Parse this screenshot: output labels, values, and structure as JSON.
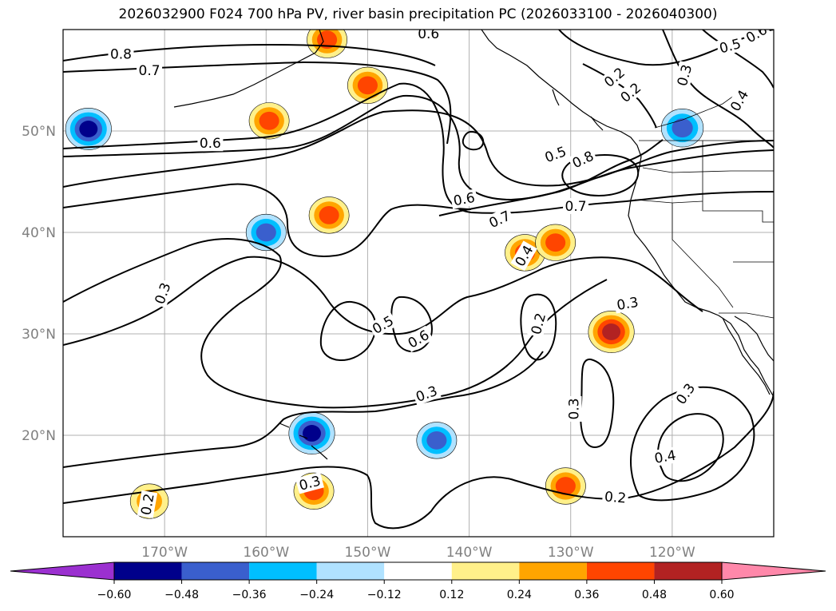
{
  "title": "2026032900 F024 700 hPa PV, river basin precipitation PC (2026033100 - 2026040300)",
  "map": {
    "lon_range": [
      -180,
      -110
    ],
    "lat_range": [
      10,
      60
    ],
    "lat_ticks": [
      {
        "lat": 50,
        "label": "50°N"
      },
      {
        "lat": 40,
        "label": "40°N"
      },
      {
        "lat": 30,
        "label": "30°N"
      },
      {
        "lat": 20,
        "label": "20°N"
      }
    ],
    "lon_ticks": [
      {
        "lon": -170,
        "label": "170°W"
      },
      {
        "lon": -160,
        "label": "160°W"
      },
      {
        "lon": -150,
        "label": "150°W"
      },
      {
        "lon": -140,
        "label": "140°W"
      },
      {
        "lon": -130,
        "label": "130°W"
      },
      {
        "lon": -120,
        "label": "120°W"
      }
    ],
    "pv_contour_labels": [
      {
        "text": "0.8",
        "lon": -174.3,
        "lat": 57.6,
        "rot": 0
      },
      {
        "text": "0.6",
        "lon": -144.0,
        "lat": 59.6,
        "rot": 0
      },
      {
        "text": "0.6",
        "lon": -165.5,
        "lat": 48.8,
        "rot": 0
      },
      {
        "text": "0.6",
        "lon": -140.5,
        "lat": 43.3,
        "rot": -10
      },
      {
        "text": "0.7",
        "lon": -137.0,
        "lat": 41.3,
        "rot": -25
      },
      {
        "text": "0.7",
        "lon": -129.5,
        "lat": 42.6,
        "rot": 0
      },
      {
        "text": "0.5",
        "lon": -131.5,
        "lat": 47.7,
        "rot": -20
      },
      {
        "text": "0.8",
        "lon": -128.8,
        "lat": 47.2,
        "rot": -25
      },
      {
        "text": "0.5",
        "lon": -148.5,
        "lat": 30.9,
        "rot": -30
      },
      {
        "text": "0.6",
        "lon": -145.0,
        "lat": 29.5,
        "rot": -30
      },
      {
        "text": "0.3",
        "lon": -170.2,
        "lat": 34.0,
        "rot": -70
      },
      {
        "text": "0.3",
        "lon": -144.2,
        "lat": 24.1,
        "rot": -20
      },
      {
        "text": "0.4",
        "lon": -134.6,
        "lat": 37.7,
        "rot": -60
      },
      {
        "text": "0.2",
        "lon": -133.2,
        "lat": 31.0,
        "rot": -75
      },
      {
        "text": "0.3",
        "lon": -124.4,
        "lat": 33.0,
        "rot": -10
      },
      {
        "text": "0.3",
        "lon": -129.7,
        "lat": 22.6,
        "rot": -90
      },
      {
        "text": "0.3",
        "lon": -118.7,
        "lat": 24.1,
        "rot": -55
      },
      {
        "text": "0.4",
        "lon": -120.7,
        "lat": 17.9,
        "rot": -10
      },
      {
        "text": "0.3",
        "lon": -155.7,
        "lat": 15.3,
        "rot": -15
      },
      {
        "text": "0.2",
        "lon": -125.6,
        "lat": 13.9,
        "rot": 5
      },
      {
        "text": "0.2",
        "lon": -171.7,
        "lat": 13.2,
        "rot": -80
      },
      {
        "text": "0.2",
        "lon": -125.7,
        "lat": 55.3,
        "rot": -40
      },
      {
        "text": "0.2",
        "lon": -124.1,
        "lat": 53.8,
        "rot": -40
      },
      {
        "text": "0.3",
        "lon": -118.8,
        "lat": 55.5,
        "rot": -75
      },
      {
        "text": "0.5",
        "lon": -114.3,
        "lat": 58.4,
        "rot": -15
      },
      {
        "text": "0.4",
        "lon": -113.4,
        "lat": 53.0,
        "rot": -60
      },
      {
        "text": "0.6",
        "lon": -111.7,
        "lat": 59.6,
        "rot": -30
      },
      {
        "text": "0.7",
        "lon": -171.5,
        "lat": 56.0,
        "rot": 0
      }
    ],
    "precip_blobs": [
      {
        "lon": -177.5,
        "lat": 50.2,
        "value": -0.55
      },
      {
        "lon": -160.0,
        "lat": 40.0,
        "value": -0.4
      },
      {
        "lon": -155.5,
        "lat": 20.2,
        "value": -0.55
      },
      {
        "lon": -143.2,
        "lat": 19.5,
        "value": -0.4
      },
      {
        "lon": -119.0,
        "lat": 50.3,
        "value": -0.45
      },
      {
        "lon": -150.0,
        "lat": 54.5,
        "value": 0.4
      },
      {
        "lon": -159.7,
        "lat": 51.0,
        "value": 0.4
      },
      {
        "lon": -153.8,
        "lat": 41.7,
        "value": 0.4
      },
      {
        "lon": -126.0,
        "lat": 30.2,
        "value": 0.55
      },
      {
        "lon": -134.5,
        "lat": 38.0,
        "value": 0.4
      },
      {
        "lon": -131.5,
        "lat": 39.0,
        "value": 0.4
      },
      {
        "lon": -155.3,
        "lat": 14.5,
        "value": 0.4
      },
      {
        "lon": -130.5,
        "lat": 15.0,
        "value": 0.4
      },
      {
        "lon": -154.0,
        "lat": 59.0,
        "value": 0.4
      },
      {
        "lon": -171.5,
        "lat": 13.5,
        "value": 0.35
      }
    ]
  },
  "colorbar": {
    "colors": [
      "#9b30d0",
      "#00008b",
      "#3a5fcd",
      "#00bfff",
      "#b0e2ff",
      "#ffffff",
      "#fff08a",
      "#ffa500",
      "#ff4500",
      "#b22222",
      "#ff88aa"
    ],
    "tick_labels": [
      "−0.60",
      "−0.48",
      "−0.36",
      "−0.24",
      "−0.12",
      "0.12",
      "0.24",
      "0.36",
      "0.48",
      "0.60"
    ]
  }
}
